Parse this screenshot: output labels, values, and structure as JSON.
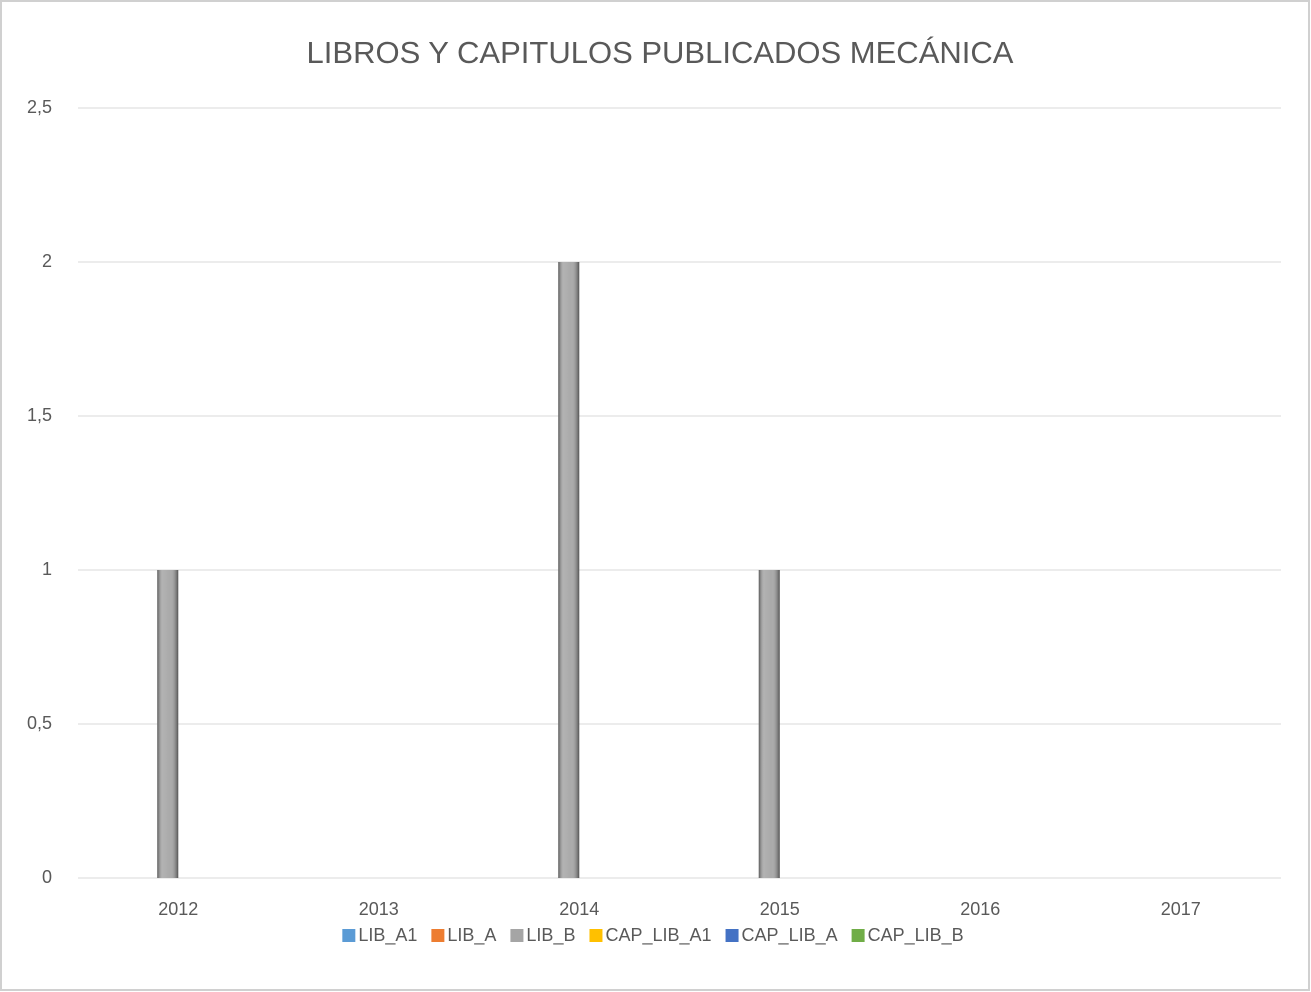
{
  "chart_data": {
    "type": "bar",
    "title": "LIBROS Y CAPITULOS PUBLICADOS MECÁNICA",
    "categories": [
      "2012",
      "2013",
      "2014",
      "2015",
      "2016",
      "2017"
    ],
    "series": [
      {
        "name": "LIB_A1",
        "color": "#5b9bd5",
        "values": [
          0,
          0,
          0,
          0,
          0,
          0
        ]
      },
      {
        "name": "LIB_A",
        "color": "#ed7d31",
        "values": [
          0,
          0,
          0,
          0,
          0,
          0
        ]
      },
      {
        "name": "LIB_B",
        "color": "#a5a5a5",
        "values": [
          1,
          0,
          2,
          1,
          0,
          0
        ]
      },
      {
        "name": "CAP_LIB_A1",
        "color": "#ffc000",
        "values": [
          0,
          0,
          0,
          0,
          0,
          0
        ]
      },
      {
        "name": "CAP_LIB_A",
        "color": "#4472c4",
        "values": [
          0,
          0,
          0,
          0,
          0,
          0
        ]
      },
      {
        "name": "CAP_LIB_B",
        "color": "#70ad47",
        "values": [
          0,
          0,
          0,
          0,
          0,
          0
        ]
      }
    ],
    "ylim": [
      0,
      2.5
    ],
    "yticks": [
      0,
      {
        "value": 0.5,
        "label": "0,5"
      },
      1,
      {
        "value": 1.5,
        "label": "1,5"
      },
      2,
      {
        "value": 2.5,
        "label": "2,5"
      }
    ],
    "grid": true,
    "legend": "bottom"
  }
}
